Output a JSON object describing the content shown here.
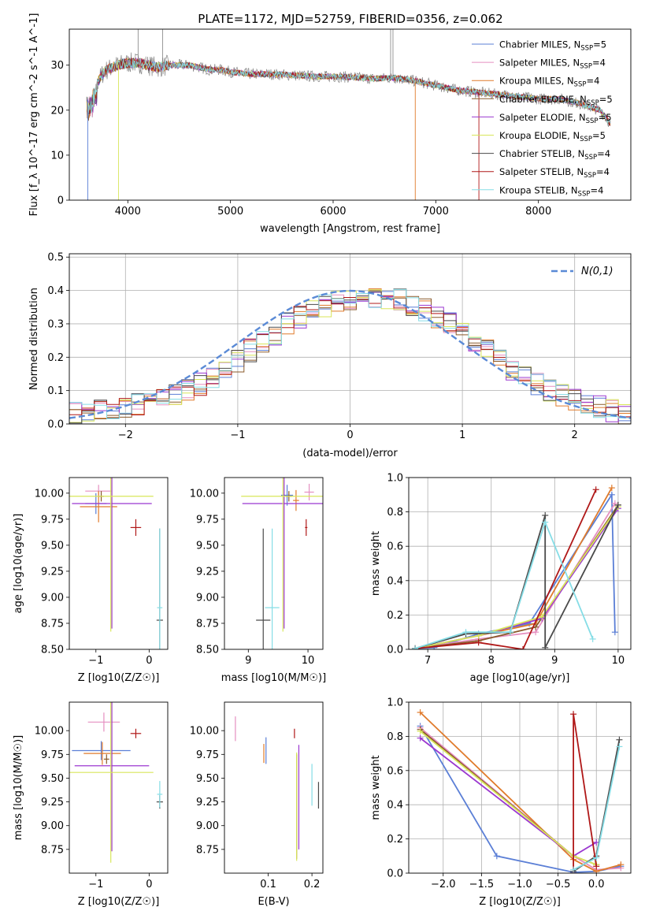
{
  "figure": {
    "title": "PLATE=1172, MJD=52759, FIBERID=0356, z=0.062"
  },
  "colors": {
    "Chabrier MILES": "#5b7fd6",
    "Salpeter MILES": "#e58fc0",
    "Kroupa MILES": "#e07b2c",
    "Chabrier ELODIE": "#8a5a2a",
    "Salpeter ELODIE": "#9b38d0",
    "Kroupa ELODIE": "#d8e65a",
    "Chabrier STELIB": "#4a4a4a",
    "Salpeter STELIB": "#b01818",
    "Kroupa STELIB": "#86dde6",
    "data_spectrum": "#808080",
    "gaussian": "#5a8ad6"
  },
  "chart_data": [
    {
      "id": "spectrum",
      "type": "line",
      "title": "PLATE=1172, MJD=52759, FIBERID=0356, z=0.062",
      "xlabel": "wavelength [Angstrom, rest frame]",
      "ylabel": "Flux [f_λ 10^-17 erg cm^-2 s^-1 A^-1]",
      "xlim": [
        3430,
        8900
      ],
      "ylim": [
        0,
        38
      ],
      "xticks": [
        4000,
        5000,
        6000,
        7000,
        8000
      ],
      "yticks": [
        0,
        10,
        20,
        30
      ],
      "legend_position": "top-right",
      "series": [
        {
          "name": "Chabrier MILES, N_SSP=5",
          "label_main": "Chabrier MILES, N",
          "label_sub": "SSP",
          "label_tail": "=5"
        },
        {
          "name": "Salpeter MILES, N_SSP=4",
          "label_main": "Salpeter MILES, N",
          "label_sub": "SSP",
          "label_tail": "=4"
        },
        {
          "name": "Kroupa MILES, N_SSP=4",
          "label_main": "Kroupa MILES, N",
          "label_sub": "SSP",
          "label_tail": "=4"
        },
        {
          "name": "Chabrier ELODIE, N_SSP=5",
          "label_main": "Chabrier ELODIE, N",
          "label_sub": "SSP",
          "label_tail": "=5"
        },
        {
          "name": "Salpeter ELODIE, N_SSP=5",
          "label_main": "Salpeter ELODIE, N",
          "label_sub": "SSP",
          "label_tail": "=5"
        },
        {
          "name": "Kroupa ELODIE, N_SSP=5",
          "label_main": "Kroupa ELODIE, N",
          "label_sub": "SSP",
          "label_tail": "=5"
        },
        {
          "name": "Chabrier STELIB, N_SSP=4",
          "label_main": "Chabrier STELIB, N",
          "label_sub": "SSP",
          "label_tail": "=4"
        },
        {
          "name": "Salpeter STELIB, N_SSP=4",
          "label_main": "Salpeter STELIB, N",
          "label_sub": "SSP",
          "label_tail": "=4"
        },
        {
          "name": "Kroupa STELIB, N_SSP=4",
          "label_main": "Kroupa STELIB, N",
          "label_sub": "SSP",
          "label_tail": "=4"
        }
      ],
      "continuum": {
        "x": [
          3600,
          3650,
          3700,
          3750,
          3800,
          3900,
          4000,
          4100,
          4200,
          4300,
          4400,
          4500,
          4600,
          4700,
          4800,
          4900,
          5000,
          5200,
          5400,
          5600,
          5800,
          6000,
          6200,
          6400,
          6600,
          6800,
          7000,
          7200,
          7400,
          7600,
          7800,
          8000,
          8200,
          8400,
          8600,
          8700
        ],
        "y": [
          22,
          23,
          26,
          28,
          29,
          30,
          30.5,
          30.5,
          30,
          29.5,
          30,
          30,
          30,
          29.5,
          29,
          29,
          28.5,
          28,
          28,
          27.8,
          27.5,
          27.5,
          27.3,
          27,
          27.2,
          26.5,
          25.5,
          24.5,
          24,
          23.5,
          23,
          22.5,
          22.5,
          21.5,
          20,
          17
        ]
      }
    },
    {
      "id": "residuals",
      "type": "histogram",
      "xlabel": "(data-model)/error",
      "ylabel": "Normed distribution",
      "xlim": [
        -2.5,
        2.5
      ],
      "ylim": [
        0,
        0.51
      ],
      "xticks": [
        -2,
        -1,
        0,
        1,
        2
      ],
      "yticks": [
        0.0,
        0.1,
        0.2,
        0.3,
        0.4,
        0.5
      ],
      "grid": true,
      "legend_position": "top-right",
      "legend": "N(0,1)",
      "bin_edges_range": [
        -2.5,
        2.5
      ],
      "bin_count": 45,
      "base_values": [
        0.03,
        0.035,
        0.04,
        0.045,
        0.055,
        0.06,
        0.07,
        0.075,
        0.085,
        0.1,
        0.12,
        0.14,
        0.16,
        0.19,
        0.22,
        0.245,
        0.27,
        0.3,
        0.32,
        0.34,
        0.355,
        0.37,
        0.37,
        0.375,
        0.38,
        0.375,
        0.37,
        0.355,
        0.34,
        0.32,
        0.3,
        0.27,
        0.245,
        0.22,
        0.19,
        0.165,
        0.14,
        0.12,
        0.1,
        0.085,
        0.07,
        0.06,
        0.05,
        0.04,
        0.035
      ]
    },
    {
      "id": "age_vs_Z",
      "type": "scatter",
      "xlabel": "Z [log10(Z/Z☉)]",
      "ylabel": "age  [log10(age/yr)]",
      "xlim": [
        -1.5,
        0.35
      ],
      "ylim": [
        8.5,
        10.15
      ],
      "xticks": [
        -1,
        0
      ],
      "yticks": [
        8.5,
        8.75,
        9.0,
        9.25,
        9.5,
        9.75,
        10.0
      ],
      "points": [
        {
          "series": "Chabrier MILES",
          "x": -1.0,
          "y": 9.9,
          "xerr": 0.2,
          "yerr": 0.1
        },
        {
          "series": "Salpeter MILES",
          "x": -0.95,
          "y": 10.02,
          "xerr": 0.25,
          "yerr": 0.06
        },
        {
          "series": "Kroupa MILES",
          "x": -0.95,
          "y": 9.87,
          "xerr": 0.35,
          "yerr": 0.15
        },
        {
          "series": "Chabrier ELODIE",
          "x": -0.9,
          "y": 9.97,
          "xerr": 0.05,
          "yerr": 0.05
        },
        {
          "series": "Salpeter ELODIE",
          "x": -0.7,
          "y": 9.9,
          "xerr": 0.75,
          "yerr": 1.2
        },
        {
          "series": "Kroupa ELODIE",
          "x": -0.72,
          "y": 9.97,
          "xerr": 0.8,
          "yerr": 1.3
        },
        {
          "series": "Chabrier STELIB",
          "x": 0.2,
          "y": 8.78,
          "xerr": 0.06,
          "yerr": 0.88
        },
        {
          "series": "Salpeter STELIB",
          "x": -0.25,
          "y": 9.67,
          "xerr": 0.1,
          "yerr": 0.08
        },
        {
          "series": "Kroupa STELIB",
          "x": 0.2,
          "y": 8.9,
          "xerr": 0.05,
          "yerr": 0.76
        }
      ]
    },
    {
      "id": "age_vs_mass",
      "type": "scatter",
      "xlabel": "mass [log10(M/M☉)]",
      "ylabel": "",
      "xlim": [
        8.6,
        10.25
      ],
      "ylim": [
        8.5,
        10.15
      ],
      "xticks": [
        9,
        10
      ],
      "yticks": [
        8.5,
        8.75,
        9.0,
        9.25,
        9.5,
        9.75,
        10.0
      ],
      "points": [
        {
          "series": "Chabrier MILES",
          "x": 9.65,
          "y": 9.98,
          "xerr": 0.1,
          "yerr": 0.1
        },
        {
          "series": "Salpeter MILES",
          "x": 10.02,
          "y": 10.01,
          "xerr": 0.08,
          "yerr": 0.08
        },
        {
          "series": "Kroupa MILES",
          "x": 9.8,
          "y": 9.93,
          "xerr": 0.05,
          "yerr": 0.1
        },
        {
          "series": "Chabrier ELODIE",
          "x": 9.68,
          "y": 9.97,
          "xerr": 0.05,
          "yerr": 0.05
        },
        {
          "series": "Salpeter ELODIE",
          "x": 9.6,
          "y": 9.9,
          "xerr": 0.7,
          "yerr": 1.2
        },
        {
          "series": "Kroupa ELODIE",
          "x": 9.58,
          "y": 9.97,
          "xerr": 0.7,
          "yerr": 1.3
        },
        {
          "series": "Chabrier STELIB",
          "x": 9.25,
          "y": 8.78,
          "xerr": 0.12,
          "yerr": 0.88
        },
        {
          "series": "Salpeter STELIB",
          "x": 9.97,
          "y": 9.67,
          "xerr": 0.02,
          "yerr": 0.08
        },
        {
          "series": "Kroupa STELIB",
          "x": 9.4,
          "y": 8.9,
          "xerr": 0.12,
          "yerr": 0.76
        }
      ]
    },
    {
      "id": "mass_weight_vs_age",
      "type": "line",
      "xlabel": "age  [log10(age/yr)]",
      "ylabel": "mass weight",
      "xlim": [
        6.7,
        10.2
      ],
      "ylim": [
        0,
        1.0
      ],
      "xticks": [
        7,
        8,
        9,
        10
      ],
      "yticks": [
        0.0,
        0.2,
        0.4,
        0.6,
        0.8,
        1.0
      ],
      "grid": true,
      "series": [
        {
          "name": "Chabrier MILES",
          "x": [
            6.8,
            7.1,
            7.8,
            8.6,
            9.9,
            9.95
          ],
          "y": [
            0.005,
            0.01,
            0.09,
            0.15,
            0.9,
            0.1
          ]
        },
        {
          "name": "Salpeter MILES",
          "x": [
            6.8,
            7.8,
            8.7,
            9.95
          ],
          "y": [
            0.005,
            0.06,
            0.1,
            0.85
          ]
        },
        {
          "name": "Kroupa MILES",
          "x": [
            6.8,
            7.8,
            8.7,
            9.9
          ],
          "y": [
            0.005,
            0.08,
            0.15,
            0.94
          ]
        },
        {
          "name": "Chabrier ELODIE",
          "x": [
            6.8,
            7.8,
            8.7,
            10.0
          ],
          "y": [
            0.005,
            0.05,
            0.13,
            0.84
          ]
        },
        {
          "name": "Salpeter ELODIE",
          "x": [
            6.8,
            7.8,
            8.8,
            10.0
          ],
          "y": [
            0.005,
            0.08,
            0.18,
            0.82
          ]
        },
        {
          "name": "Kroupa ELODIE",
          "x": [
            6.8,
            7.8,
            8.8,
            10.0
          ],
          "y": [
            0.005,
            0.08,
            0.19,
            0.83
          ]
        },
        {
          "name": "Chabrier STELIB",
          "x": [
            6.8,
            7.6,
            8.3,
            8.85,
            8.85,
            10.0
          ],
          "y": [
            0.005,
            0.09,
            0.1,
            0.78,
            0.01,
            0.84
          ]
        },
        {
          "name": "Salpeter STELIB",
          "x": [
            6.8,
            7.8,
            8.5,
            9.65
          ],
          "y": [
            0.005,
            0.04,
            0.0,
            0.93
          ]
        },
        {
          "name": "Kroupa STELIB",
          "x": [
            6.8,
            7.6,
            8.3,
            8.85,
            9.6
          ],
          "y": [
            0.005,
            0.1,
            0.1,
            0.74,
            0.06
          ]
        }
      ]
    },
    {
      "id": "mass_vs_Z",
      "type": "scatter",
      "xlabel": "Z [log10(Z/Z☉)]",
      "ylabel": "mass [log10(M/M☉)]",
      "xlim": [
        -1.5,
        0.35
      ],
      "ylim": [
        8.5,
        10.3
      ],
      "xticks": [
        -1,
        0
      ],
      "yticks": [
        8.75,
        9.0,
        9.25,
        9.5,
        9.75,
        10.0
      ],
      "points": [
        {
          "series": "Chabrier MILES",
          "x": -0.9,
          "y": 9.79,
          "xerr": 0.55,
          "yerr": 0.1
        },
        {
          "series": "Salpeter MILES",
          "x": -0.85,
          "y": 10.09,
          "xerr": 0.3,
          "yerr": 0.1
        },
        {
          "series": "Kroupa MILES",
          "x": -0.88,
          "y": 9.76,
          "xerr": 0.35,
          "yerr": 0.12
        },
        {
          "series": "Chabrier ELODIE",
          "x": -0.8,
          "y": 9.7,
          "xerr": 0.05,
          "yerr": 0.05
        },
        {
          "series": "Salpeter ELODIE",
          "x": -0.7,
          "y": 9.63,
          "xerr": 0.7,
          "yerr": 0.9
        },
        {
          "series": "Kroupa ELODIE",
          "x": -0.72,
          "y": 9.56,
          "xerr": 0.8,
          "yerr": 0.95
        },
        {
          "series": "Chabrier STELIB",
          "x": 0.2,
          "y": 9.25,
          "xerr": 0.06,
          "yerr": 0.07
        },
        {
          "series": "Salpeter STELIB",
          "x": -0.25,
          "y": 9.97,
          "xerr": 0.1,
          "yerr": 0.05
        },
        {
          "series": "Kroupa STELIB",
          "x": 0.2,
          "y": 9.33,
          "xerr": 0.05,
          "yerr": 0.14
        }
      ]
    },
    {
      "id": "mass_vs_ebv",
      "type": "scatter",
      "xlabel": "E(B-V)",
      "ylabel": "",
      "xlim": [
        0.0,
        0.225
      ],
      "ylim": [
        8.5,
        10.3
      ],
      "xticks": [
        0.1,
        0.2
      ],
      "yticks": [
        8.75,
        9.0,
        9.25,
        9.5,
        9.75,
        10.0
      ],
      "points": [
        {
          "series": "Chabrier MILES",
          "x": 0.095,
          "y": 9.79,
          "xerr": 0.0,
          "yerr": 0.14
        },
        {
          "series": "Salpeter MILES",
          "x": 0.025,
          "y": 10.02,
          "xerr": 0.0,
          "yerr": 0.13
        },
        {
          "series": "Kroupa MILES",
          "x": 0.09,
          "y": 9.76,
          "xerr": 0.0,
          "yerr": 0.1
        },
        {
          "series": "Chabrier ELODIE",
          "x": 0.165,
          "y": 9.2,
          "xerr": 0.0,
          "yerr": 0.55
        },
        {
          "series": "Salpeter ELODIE",
          "x": 0.17,
          "y": 9.3,
          "xerr": 0.0,
          "yerr": 0.55
        },
        {
          "series": "Kroupa ELODIE",
          "x": 0.165,
          "y": 9.2,
          "xerr": 0.0,
          "yerr": 0.57
        },
        {
          "series": "Chabrier STELIB",
          "x": 0.215,
          "y": 9.32,
          "xerr": 0.0,
          "yerr": 0.14
        },
        {
          "series": "Salpeter STELIB",
          "x": 0.16,
          "y": 9.97,
          "xerr": 0.0,
          "yerr": 0.05
        },
        {
          "series": "Kroupa STELIB",
          "x": 0.2,
          "y": 9.43,
          "xerr": 0.0,
          "yerr": 0.22
        }
      ]
    },
    {
      "id": "mass_weight_vs_Z",
      "type": "line",
      "xlabel": "Z [log10(Z/Z☉)]",
      "ylabel": "mass weight",
      "xlim": [
        -2.45,
        0.45
      ],
      "ylim": [
        0,
        1.0
      ],
      "xticks": [
        -2.0,
        -1.5,
        -1.0,
        -0.5,
        0.0
      ],
      "yticks": [
        0.0,
        0.2,
        0.4,
        0.6,
        0.8,
        1.0
      ],
      "grid": true,
      "series": [
        {
          "name": "Chabrier MILES",
          "x": [
            -2.3,
            -1.3,
            -0.3,
            0.0,
            0.32
          ],
          "y": [
            0.86,
            0.1,
            0.005,
            0.01,
            0.04
          ]
        },
        {
          "name": "Salpeter MILES",
          "x": [
            -2.3,
            -0.3,
            0.0,
            0.32
          ],
          "y": [
            0.85,
            0.1,
            0.02,
            0.03
          ]
        },
        {
          "name": "Kroupa MILES",
          "x": [
            -2.3,
            -0.3,
            0.0,
            0.32
          ],
          "y": [
            0.94,
            0.08,
            0.01,
            0.05
          ]
        },
        {
          "name": "Chabrier ELODIE",
          "x": [
            -2.3,
            -0.3,
            0.0
          ],
          "y": [
            0.84,
            0.1,
            0.05
          ]
        },
        {
          "name": "Salpeter ELODIE",
          "x": [
            -2.3,
            -0.3,
            0.0
          ],
          "y": [
            0.79,
            0.1,
            0.18
          ]
        },
        {
          "name": "Kroupa ELODIE",
          "x": [
            -2.3,
            -0.3,
            0.0
          ],
          "y": [
            0.83,
            0.1,
            0.05
          ]
        },
        {
          "name": "Chabrier STELIB",
          "x": [
            -0.3,
            0.0,
            0.3
          ],
          "y": [
            0.01,
            0.1,
            0.78
          ]
        },
        {
          "name": "Salpeter STELIB",
          "x": [
            -0.3,
            -0.3,
            0.0
          ],
          "y": [
            0.0,
            0.93,
            0.04
          ]
        },
        {
          "name": "Kroupa STELIB",
          "x": [
            -0.3,
            0.0,
            0.3
          ],
          "y": [
            0.02,
            0.09,
            0.74
          ]
        }
      ]
    }
  ]
}
